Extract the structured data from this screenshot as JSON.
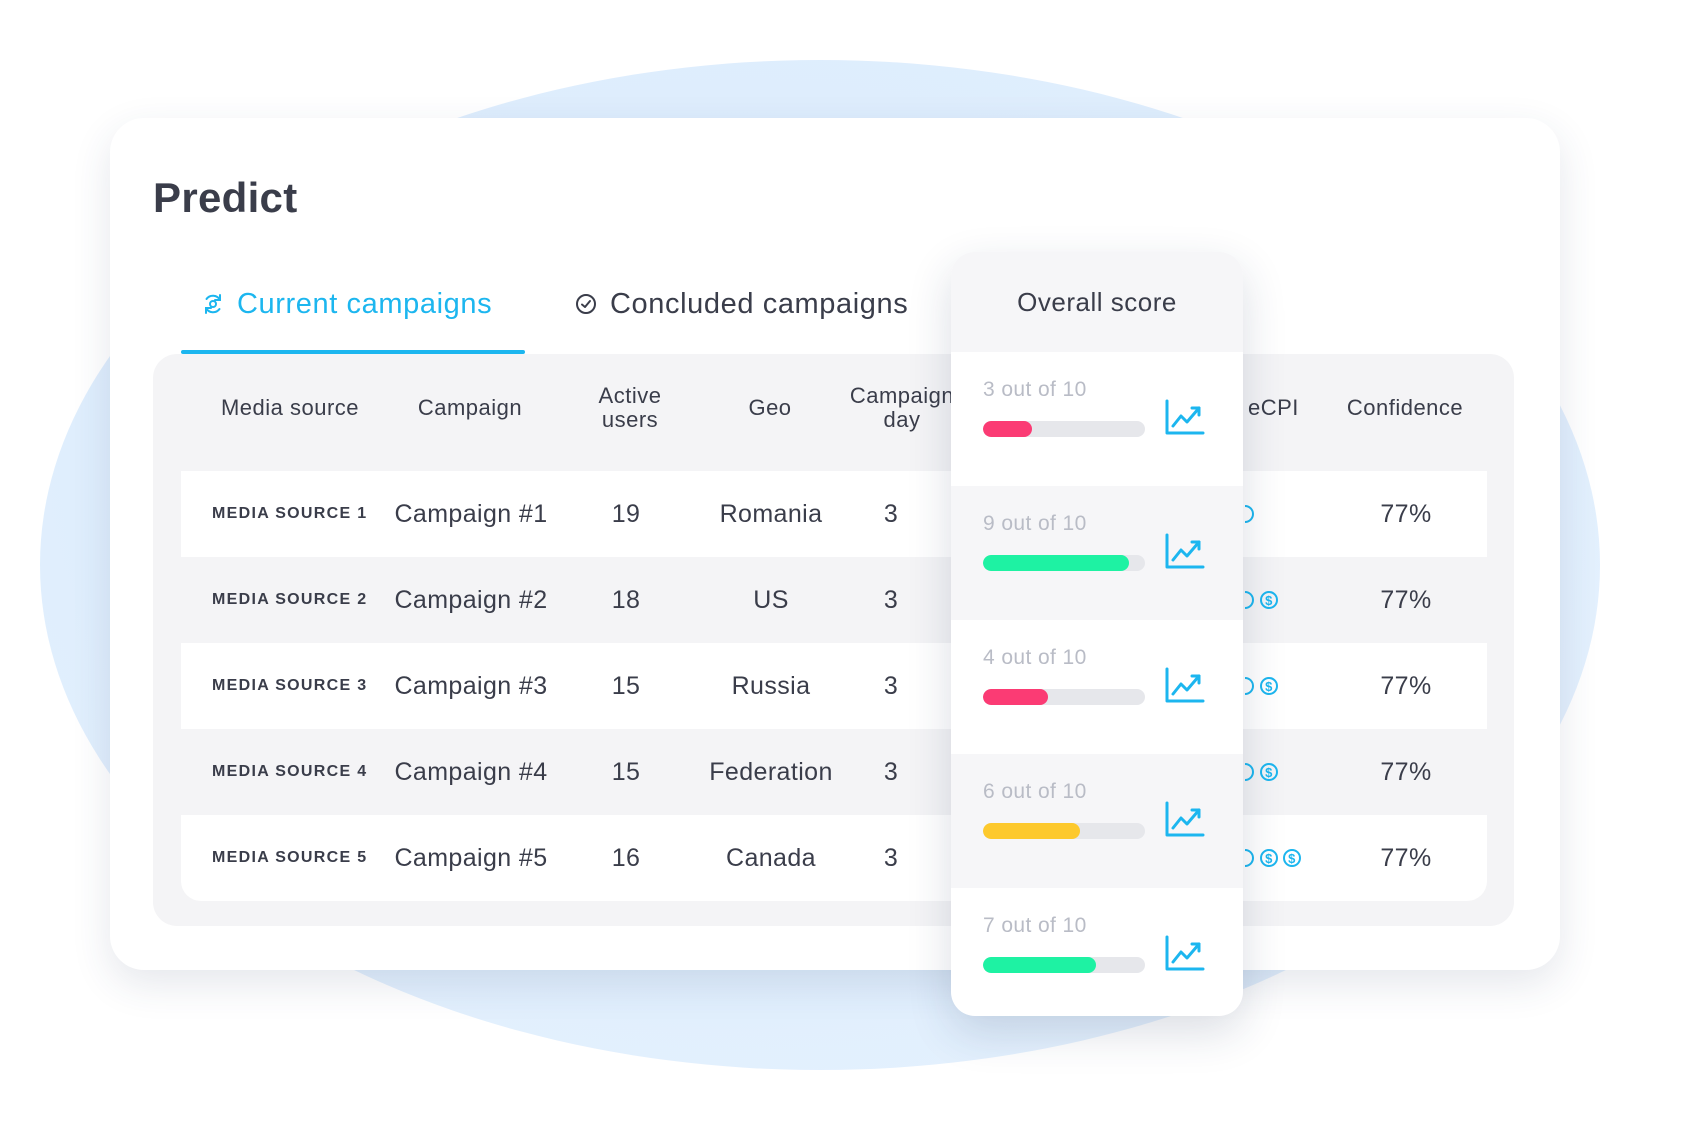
{
  "page": {
    "title": "Predict"
  },
  "tabs": [
    {
      "label": "Current campaigns",
      "active": true,
      "icon": "refresh-icon"
    },
    {
      "label": "Concluded campaigns",
      "active": false,
      "icon": "check-circle-icon"
    }
  ],
  "table": {
    "headers": {
      "media_source": "Media source",
      "campaign": "Campaign",
      "active_users_l1": "Active",
      "active_users_l2": "users",
      "geo": "Geo",
      "campaign_day_l1": "Campaign",
      "campaign_day_l2": "day",
      "ecpi": "eCPI",
      "confidence": "Confidence"
    },
    "rows": [
      {
        "source": "MEDIA SOURCE 1",
        "campaign": "Campaign #1",
        "active_users": "19",
        "geo": "Romania",
        "day": "3",
        "ecpi_coins": 1,
        "confidence": "77%"
      },
      {
        "source": "MEDIA SOURCE 2",
        "campaign": "Campaign #2",
        "active_users": "18",
        "geo": "US",
        "day": "3",
        "ecpi_coins": 2,
        "confidence": "77%"
      },
      {
        "source": "MEDIA SOURCE 3",
        "campaign": "Campaign #3",
        "active_users": "15",
        "geo": "Russia",
        "day": "3",
        "ecpi_coins": 2,
        "confidence": "77%"
      },
      {
        "source": "MEDIA SOURCE 4",
        "campaign": "Campaign #4",
        "active_users": "15",
        "geo": "Federation",
        "day": "3",
        "ecpi_coins": 2,
        "confidence": "77%"
      },
      {
        "source": "MEDIA SOURCE 5",
        "campaign": "Campaign #5",
        "active_users": "16",
        "geo": "Canada",
        "day": "3",
        "ecpi_coins": 3,
        "confidence": "77%"
      }
    ]
  },
  "overall_score": {
    "header": "Overall score",
    "items": [
      {
        "label": "3 out of 10",
        "value": 3,
        "max": 10,
        "color": "#fb3b74"
      },
      {
        "label": "9 out of 10",
        "value": 9,
        "max": 10,
        "color": "#1ef2a3"
      },
      {
        "label": "4 out of 10",
        "value": 4,
        "max": 10,
        "color": "#fb3b74"
      },
      {
        "label": "6 out of 10",
        "value": 6,
        "max": 10,
        "color": "#fdc92d"
      },
      {
        "label": "7 out of 10",
        "value": 7,
        "max": 10,
        "color": "#1ef2a3"
      }
    ]
  },
  "colors": {
    "accent": "#1cb6ef",
    "text": "#3a3d4a",
    "muted": "#b9bcc6"
  }
}
